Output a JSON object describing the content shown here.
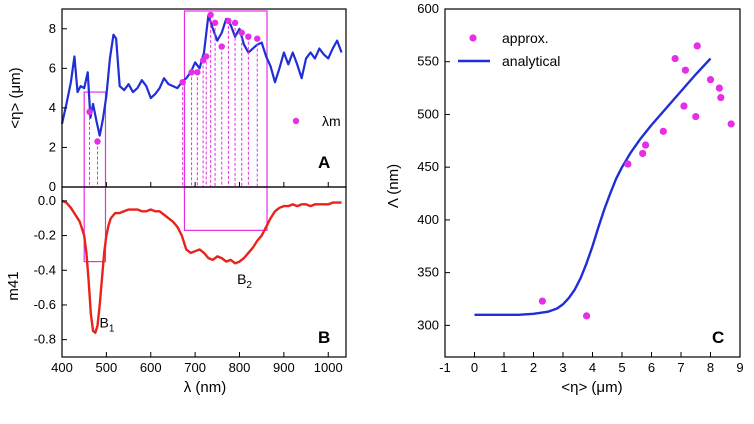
{
  "colors": {
    "blue": "#1f2ed6",
    "red": "#e8231c",
    "magenta": "#e62ee6",
    "axis": "#000000"
  },
  "chart_data": [
    {
      "id": "A",
      "type": "line",
      "panel_label": "A",
      "ylabel": "<η> (μm)",
      "xlim": [
        400,
        1040
      ],
      "ylim": [
        0,
        9
      ],
      "yticks": [
        0,
        2,
        4,
        6,
        8
      ],
      "series": [
        {
          "name": "<η>",
          "color": "#1f2ed6",
          "x": [
            400,
            410,
            420,
            428,
            435,
            442,
            450,
            458,
            464,
            470,
            478,
            485,
            492,
            500,
            508,
            516,
            522,
            530,
            540,
            550,
            560,
            570,
            580,
            590,
            600,
            610,
            620,
            630,
            640,
            650,
            660,
            670,
            680,
            690,
            700,
            710,
            720,
            730,
            740,
            750,
            760,
            770,
            780,
            790,
            800,
            810,
            820,
            830,
            840,
            850,
            860,
            870,
            880,
            890,
            900,
            910,
            920,
            930,
            940,
            950,
            960,
            970,
            980,
            990,
            1000,
            1010,
            1020,
            1030
          ],
          "y": [
            3.2,
            4.2,
            5.3,
            6.6,
            4.8,
            5.1,
            5.0,
            5.8,
            3.5,
            4.2,
            3.3,
            2.6,
            3.4,
            4.6,
            6.5,
            7.7,
            7.5,
            5.1,
            4.9,
            5.2,
            4.8,
            5.0,
            5.4,
            5.1,
            4.5,
            4.7,
            5.0,
            5.5,
            5.2,
            5.1,
            5.0,
            5.3,
            5.5,
            5.8,
            6.3,
            6.0,
            6.8,
            8.7,
            8.0,
            7.4,
            7.8,
            8.5,
            8.2,
            7.6,
            8.0,
            7.2,
            6.8,
            7.0,
            7.2,
            7.3,
            6.6,
            6.1,
            5.3,
            6.0,
            6.8,
            6.2,
            6.8,
            6.2,
            5.5,
            6.5,
            6.8,
            6.5,
            7.0,
            6.7,
            6.5,
            7.0,
            7.4,
            6.8
          ]
        }
      ],
      "markers": {
        "name": "λm",
        "color": "#e62ee6",
        "x": [
          462,
          480,
          672,
          692,
          705,
          718,
          725,
          735,
          745,
          760,
          775,
          790,
          805,
          820,
          840
        ],
        "y": [
          3.8,
          2.3,
          5.3,
          5.8,
          5.8,
          6.4,
          6.6,
          8.7,
          8.3,
          7.1,
          8.4,
          8.3,
          7.8,
          7.6,
          7.5
        ]
      },
      "boxes": [
        {
          "name": "B1",
          "x": [
            450,
            498
          ],
          "y": [
            0,
            4.8
          ]
        },
        {
          "name": "B2",
          "x": [
            676,
            862
          ],
          "y": [
            0,
            8.9
          ]
        }
      ],
      "legend": [
        "λm"
      ],
      "legend_placement": "right"
    },
    {
      "id": "B",
      "type": "line",
      "panel_label": "B",
      "xlabel": "λ (nm)",
      "ylabel": "m41",
      "xlim": [
        400,
        1040
      ],
      "ylim": [
        -0.9,
        0.08
      ],
      "xticks": [
        400,
        500,
        600,
        700,
        800,
        900,
        1000
      ],
      "xtick_labels": [
        "400",
        "500",
        "600",
        "700",
        "800",
        "900",
        "1000"
      ],
      "yticks": [
        0.0,
        -0.2,
        -0.4,
        -0.6,
        -0.8
      ],
      "ytick_labels": [
        "0.0",
        "-0.2",
        "-0.4",
        "-0.6",
        "-0.8"
      ],
      "series": [
        {
          "name": "m41",
          "color": "#e8231c",
          "x": [
            400,
            410,
            420,
            430,
            440,
            450,
            455,
            460,
            465,
            470,
            475,
            480,
            485,
            490,
            495,
            500,
            505,
            510,
            520,
            530,
            540,
            550,
            560,
            570,
            580,
            590,
            600,
            610,
            620,
            630,
            640,
            650,
            660,
            670,
            680,
            690,
            700,
            710,
            720,
            730,
            740,
            750,
            760,
            770,
            780,
            790,
            800,
            810,
            820,
            830,
            840,
            850,
            860,
            870,
            880,
            890,
            900,
            910,
            920,
            930,
            940,
            950,
            960,
            970,
            980,
            990,
            1000,
            1010,
            1020,
            1030
          ],
          "y": [
            0.0,
            -0.01,
            -0.04,
            -0.08,
            -0.12,
            -0.2,
            -0.3,
            -0.46,
            -0.65,
            -0.75,
            -0.76,
            -0.72,
            -0.6,
            -0.45,
            -0.3,
            -0.2,
            -0.14,
            -0.1,
            -0.07,
            -0.07,
            -0.06,
            -0.05,
            -0.05,
            -0.05,
            -0.06,
            -0.06,
            -0.05,
            -0.06,
            -0.06,
            -0.08,
            -0.1,
            -0.12,
            -0.15,
            -0.2,
            -0.28,
            -0.3,
            -0.29,
            -0.28,
            -0.3,
            -0.33,
            -0.34,
            -0.32,
            -0.33,
            -0.35,
            -0.34,
            -0.36,
            -0.35,
            -0.33,
            -0.3,
            -0.27,
            -0.23,
            -0.2,
            -0.15,
            -0.1,
            -0.06,
            -0.04,
            -0.03,
            -0.03,
            -0.02,
            -0.03,
            -0.02,
            -0.02,
            -0.03,
            -0.02,
            -0.02,
            -0.02,
            -0.02,
            -0.01,
            -0.01,
            -0.01
          ]
        }
      ],
      "boxes": [
        {
          "name": "B1",
          "x": [
            450,
            498
          ],
          "y": [
            0.08,
            -0.35
          ]
        },
        {
          "name": "B2",
          "x": [
            676,
            862
          ],
          "y": [
            0.08,
            -0.17
          ]
        }
      ],
      "annotations": [
        {
          "label": "B",
          "sub": "1",
          "x": 480,
          "y": -0.7
        },
        {
          "label": "B",
          "sub": "2",
          "x": 790,
          "y": -0.45
        }
      ]
    },
    {
      "id": "C",
      "type": "scatter",
      "panel_label": "C",
      "xlabel": "<η> (μm)",
      "ylabel": "Λ (nm)",
      "xlim": [
        -1,
        9
      ],
      "ylim": [
        270,
        600
      ],
      "xticks": [
        -1,
        0,
        1,
        2,
        3,
        4,
        5,
        6,
        7,
        8,
        9
      ],
      "xtick_labels": [
        "-1",
        "0",
        "1",
        "2",
        "3",
        "4",
        "5",
        "6",
        "7",
        "8",
        "9"
      ],
      "yticks": [
        300,
        350,
        400,
        450,
        500,
        550,
        600
      ],
      "ytick_labels": [
        "300",
        "350",
        "400",
        "450",
        "500",
        "550",
        "600"
      ],
      "series": [
        {
          "name": "approx.",
          "type": "scatter",
          "color": "#e62ee6",
          "x": [
            2.3,
            3.8,
            5.2,
            5.7,
            5.8,
            6.4,
            6.8,
            7.1,
            7.15,
            7.5,
            7.55,
            8.0,
            8.3,
            8.35,
            8.7
          ],
          "y": [
            323,
            309,
            453,
            463,
            471,
            484,
            553,
            508,
            542,
            498,
            565,
            533,
            525,
            516,
            491
          ]
        },
        {
          "name": "analytical",
          "type": "line",
          "color": "#1f2ed6",
          "x": [
            0,
            0.5,
            1,
            1.5,
            2,
            2.5,
            2.8,
            3.0,
            3.2,
            3.4,
            3.6,
            3.8,
            4.0,
            4.2,
            4.4,
            4.6,
            4.8,
            5.0,
            5.3,
            5.6,
            6.0,
            6.5,
            7.0,
            7.5,
            8.0
          ],
          "y": [
            310,
            310,
            310,
            310,
            311,
            313,
            316,
            320,
            326,
            334,
            345,
            359,
            375,
            393,
            410,
            425,
            439,
            450,
            464,
            476,
            490,
            506,
            522,
            538,
            553
          ]
        }
      ],
      "legend": [
        "approx.",
        "analytical"
      ],
      "legend_placement": "top-left"
    }
  ]
}
